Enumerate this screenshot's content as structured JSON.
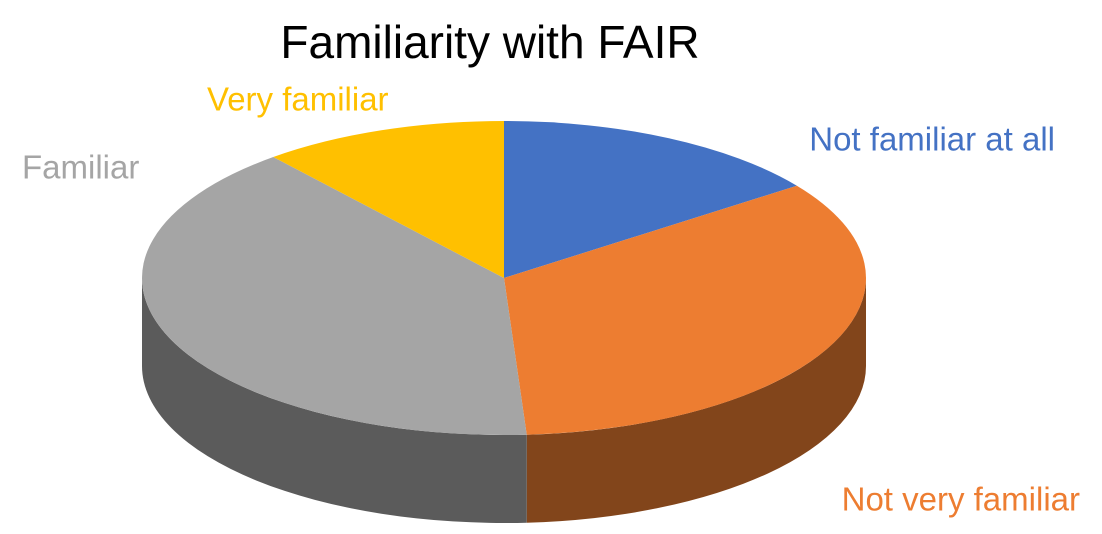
{
  "chart_data": {
    "type": "pie",
    "title": "Familiarity with FAIR",
    "categories": [
      "Not familiar at all",
      "Not very familiar",
      "Familiar",
      "Very familiar"
    ],
    "values": [
      15,
      34,
      40,
      11
    ],
    "colors": [
      "#4472c4",
      "#ed7d31",
      "#a5a5a5",
      "#ffc000"
    ],
    "start_angle": 0,
    "direction": "clockwise",
    "three_d": true
  }
}
